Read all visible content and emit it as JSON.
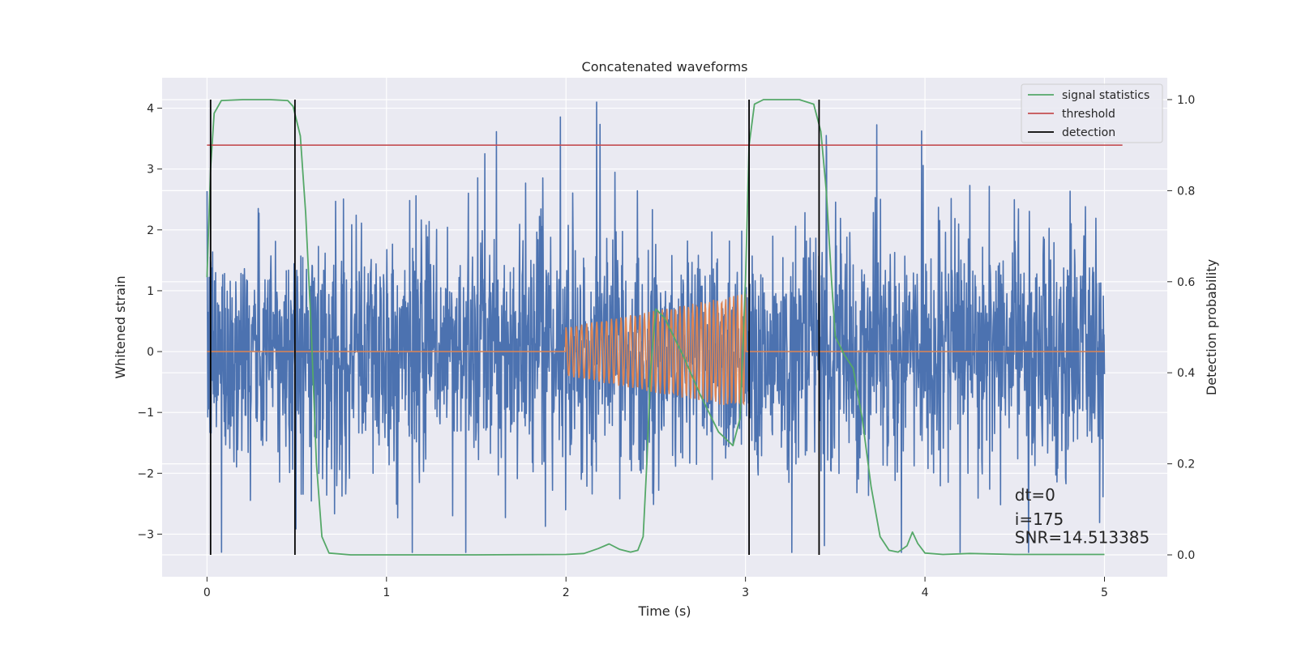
{
  "chart_data": {
    "type": "line",
    "title": "Concatenated waveforms",
    "xlabel": "Time (s)",
    "ylabel": "Whitened strain",
    "ylabel_right": "Detection probability",
    "xlim": [
      -0.25,
      5.35
    ],
    "ylim": [
      -3.7,
      4.5
    ],
    "ylim_right": [
      -0.048,
      1.048
    ],
    "xticks": [
      0,
      1,
      2,
      3,
      4,
      5
    ],
    "yticks": [
      -3,
      -2,
      -1,
      0,
      1,
      2,
      3,
      4
    ],
    "yticks_right": [
      0.0,
      0.2,
      0.4,
      0.6,
      0.8,
      1.0
    ],
    "xtick_labels": [
      "0",
      "1",
      "2",
      "3",
      "4",
      "5"
    ],
    "ytick_labels": [
      "−3",
      "−2",
      "−1",
      "0",
      "1",
      "2",
      "3",
      "4"
    ],
    "ytick_labels_right": [
      "0.0",
      "0.2",
      "0.4",
      "0.6",
      "0.8",
      "1.0"
    ],
    "grid": true,
    "legend_position": "top-right",
    "colors": {
      "background": "#eaeaf2",
      "strain": "#4c72b0",
      "template": "#dd8452",
      "statistics": "#55a868",
      "threshold": "#c44e52",
      "detection": "#000000"
    },
    "series": [
      {
        "name": "",
        "axis": "left",
        "description_values": "noisy whitened strain, amplitude ~±2.5, time 0 to 5 s",
        "x_range": [
          0,
          5
        ],
        "amplitude": 2.4
      },
      {
        "name": "",
        "axis": "left",
        "chirp": {
          "start": 2.0,
          "end": 3.0,
          "amp_start": 0.4,
          "amp_end": 0.95
        }
      },
      {
        "name": "signal statistics",
        "axis": "right",
        "points": [
          [
            0,
            0.61
          ],
          [
            0.02,
            0.85
          ],
          [
            0.04,
            0.97
          ],
          [
            0.08,
            0.998
          ],
          [
            0.2,
            1.0
          ],
          [
            0.35,
            1.0
          ],
          [
            0.45,
            0.998
          ],
          [
            0.48,
            0.985
          ],
          [
            0.52,
            0.92
          ],
          [
            0.55,
            0.75
          ],
          [
            0.58,
            0.5
          ],
          [
            0.61,
            0.2
          ],
          [
            0.64,
            0.04
          ],
          [
            0.68,
            0.004
          ],
          [
            0.8,
            0.0
          ],
          [
            1.5,
            0.0
          ],
          [
            2.0,
            0.001
          ],
          [
            2.1,
            0.003
          ],
          [
            2.18,
            0.014
          ],
          [
            2.24,
            0.024
          ],
          [
            2.3,
            0.012
          ],
          [
            2.36,
            0.006
          ],
          [
            2.4,
            0.01
          ],
          [
            2.43,
            0.04
          ],
          [
            2.45,
            0.2
          ],
          [
            2.47,
            0.4
          ],
          [
            2.5,
            0.54
          ],
          [
            2.55,
            0.52
          ],
          [
            2.65,
            0.44
          ],
          [
            2.75,
            0.35
          ],
          [
            2.85,
            0.27
          ],
          [
            2.93,
            0.24
          ],
          [
            2.97,
            0.3
          ],
          [
            3.0,
            0.6
          ],
          [
            3.02,
            0.9
          ],
          [
            3.05,
            0.99
          ],
          [
            3.1,
            1.0
          ],
          [
            3.3,
            1.0
          ],
          [
            3.38,
            0.99
          ],
          [
            3.42,
            0.93
          ],
          [
            3.45,
            0.8
          ],
          [
            3.48,
            0.6
          ],
          [
            3.5,
            0.48
          ],
          [
            3.55,
            0.44
          ],
          [
            3.6,
            0.41
          ],
          [
            3.65,
            0.3
          ],
          [
            3.7,
            0.15
          ],
          [
            3.75,
            0.04
          ],
          [
            3.8,
            0.01
          ],
          [
            3.85,
            0.006
          ],
          [
            3.9,
            0.02
          ],
          [
            3.93,
            0.05
          ],
          [
            3.96,
            0.025
          ],
          [
            4.0,
            0.004
          ],
          [
            4.1,
            0.001
          ],
          [
            4.25,
            0.003
          ],
          [
            4.5,
            0.001
          ],
          [
            5.0,
            0.001
          ]
        ]
      },
      {
        "name": "threshold",
        "axis": "right",
        "x": [
          0,
          5.1
        ],
        "y": [
          0.9,
          0.9
        ]
      },
      {
        "name": "detection",
        "axis": "right",
        "vlines": [
          0.02,
          0.49,
          3.02,
          3.41
        ],
        "ymin": 0.0,
        "ymax": 1.0
      }
    ],
    "legend_entries": [
      "signal statistics",
      "threshold",
      "detection"
    ],
    "annotations": [
      {
        "text": "dt=0",
        "x": 4.5,
        "y": -2.45
      },
      {
        "text": "i=175",
        "x": 4.5,
        "y": -2.85
      },
      {
        "text": "SNR=14.513385",
        "x": 4.5,
        "y": -3.15
      }
    ]
  }
}
